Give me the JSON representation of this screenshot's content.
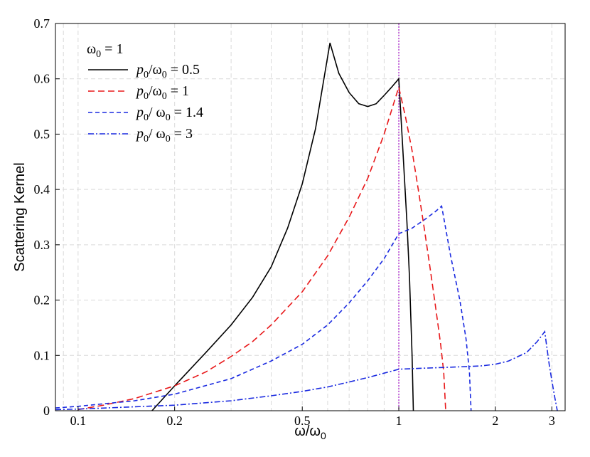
{
  "chart_data": {
    "type": "line",
    "xlabel": {
      "base": "ω/ω",
      "sub": "0"
    },
    "ylabel": "Scattering Kernel",
    "xscale": "log",
    "xlim": [
      0.085,
      3.3
    ],
    "ylim": [
      0,
      0.7
    ],
    "xticks": [
      {
        "value": 0.1,
        "label": "0.1"
      },
      {
        "value": 0.2,
        "label": "0.2"
      },
      {
        "value": 0.5,
        "label": "0.5"
      },
      {
        "value": 1,
        "label": "1"
      },
      {
        "value": 2,
        "label": "2"
      },
      {
        "value": 3,
        "label": "3"
      }
    ],
    "yticks": [
      {
        "value": 0,
        "label": "0"
      },
      {
        "value": 0.1,
        "label": "0.1"
      },
      {
        "value": 0.2,
        "label": "0.2"
      },
      {
        "value": 0.3,
        "label": "0.3"
      },
      {
        "value": 0.4,
        "label": "0.4"
      },
      {
        "value": 0.5,
        "label": "0.5"
      },
      {
        "value": 0.6,
        "label": "0.6"
      },
      {
        "value": 0.7,
        "label": "0.7"
      }
    ],
    "grid": true,
    "reference_line": {
      "x": 1,
      "color": "#b030d0"
    },
    "legend": {
      "placement": "top-left",
      "header": {
        "base": "ω",
        "sub": "0",
        "rest": " = 1"
      }
    },
    "series": [
      {
        "name": "p0/ω0 = 0.5",
        "label": {
          "p": "p",
          "psub": "0",
          "mid": "/ω",
          "osub": "0",
          "rest": " = 0.5"
        },
        "color": "#000000",
        "dash": "",
        "x": [
          0.17,
          0.2,
          0.25,
          0.3,
          0.35,
          0.4,
          0.45,
          0.5,
          0.55,
          0.61,
          0.65,
          0.7,
          0.75,
          0.8,
          0.85,
          0.9,
          0.95,
          1.0,
          1.03,
          1.06,
          1.08,
          1.09,
          1.1,
          1.11
        ],
        "y": [
          0.0,
          0.045,
          0.105,
          0.155,
          0.205,
          0.26,
          0.33,
          0.41,
          0.51,
          0.665,
          0.61,
          0.575,
          0.555,
          0.55,
          0.555,
          0.57,
          0.585,
          0.6,
          0.47,
          0.34,
          0.24,
          0.17,
          0.1,
          0.0
        ]
      },
      {
        "name": "p0/ω0 = 1",
        "label": {
          "p": "p",
          "psub": "0",
          "mid": "/ω",
          "osub": "0",
          "rest": " = 1"
        },
        "color": "#e8181a",
        "dash": "9 5",
        "x": [
          0.1,
          0.12,
          0.15,
          0.2,
          0.25,
          0.3,
          0.35,
          0.4,
          0.5,
          0.6,
          0.7,
          0.8,
          0.9,
          1.0,
          1.05,
          1.1,
          1.15,
          1.2,
          1.25,
          1.3,
          1.35,
          1.38,
          1.4
        ],
        "y": [
          0.002,
          0.01,
          0.022,
          0.045,
          0.07,
          0.098,
          0.125,
          0.155,
          0.215,
          0.28,
          0.35,
          0.42,
          0.5,
          0.585,
          0.53,
          0.47,
          0.4,
          0.33,
          0.26,
          0.19,
          0.12,
          0.07,
          0.0
        ]
      },
      {
        "name": "p0/ω0 = 1.4",
        "label": {
          "p": "p",
          "psub": "0",
          "mid": "/ ω",
          "osub": "0",
          "rest": " = 1.4"
        },
        "color": "#1a2ae0",
        "dash": "6 4",
        "x": [
          0.085,
          0.1,
          0.15,
          0.2,
          0.3,
          0.4,
          0.5,
          0.6,
          0.7,
          0.8,
          0.9,
          1.0,
          1.1,
          1.2,
          1.3,
          1.36,
          1.45,
          1.55,
          1.62,
          1.66,
          1.68
        ],
        "y": [
          0.005,
          0.008,
          0.018,
          0.03,
          0.058,
          0.09,
          0.12,
          0.155,
          0.195,
          0.235,
          0.275,
          0.32,
          0.33,
          0.345,
          0.36,
          0.37,
          0.28,
          0.2,
          0.13,
          0.07,
          0.0
        ]
      },
      {
        "name": "p0/ω0 = 3",
        "label": {
          "p": "p",
          "psub": "0",
          "mid": "/ ω",
          "osub": "0",
          "rest": " = 3"
        },
        "color": "#1a2ae0",
        "dash": "8 3 2 3",
        "x": [
          0.085,
          0.1,
          0.2,
          0.3,
          0.4,
          0.5,
          0.6,
          0.7,
          0.8,
          0.9,
          1.0,
          1.2,
          1.5,
          1.8,
          2.0,
          2.2,
          2.5,
          2.7,
          2.85,
          2.95,
          3.05,
          3.12
        ],
        "y": [
          0.002,
          0.003,
          0.01,
          0.018,
          0.027,
          0.035,
          0.043,
          0.052,
          0.06,
          0.068,
          0.075,
          0.077,
          0.079,
          0.081,
          0.084,
          0.09,
          0.105,
          0.125,
          0.143,
          0.08,
          0.03,
          0.0
        ]
      }
    ]
  }
}
